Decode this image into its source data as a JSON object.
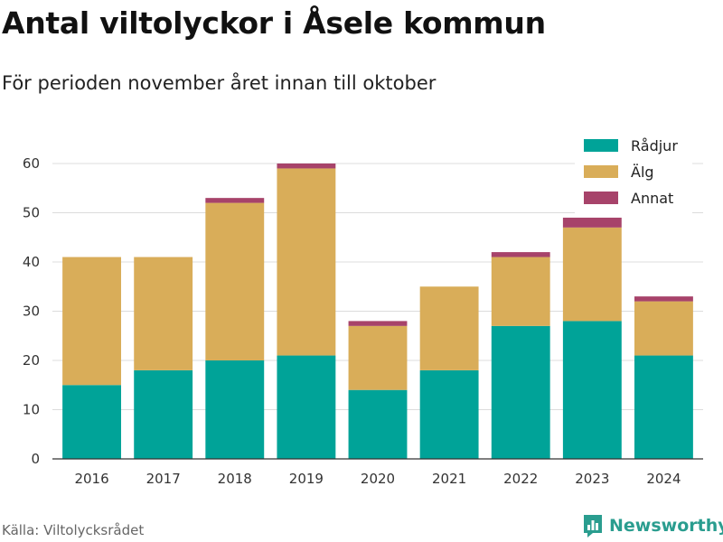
{
  "title": "Antal viltolyckor i Åsele kommun",
  "subtitle": "För perioden november året innan till oktober",
  "source": "Källa: Viltolycksrådet",
  "brand": {
    "name": "Newsworthy",
    "icon": "bar-chart-logo-icon",
    "color": "#2a9d8f"
  },
  "chart_data": {
    "type": "bar",
    "stacked": true,
    "categories": [
      "2016",
      "2017",
      "2018",
      "2019",
      "2020",
      "2021",
      "2022",
      "2023",
      "2024"
    ],
    "series": [
      {
        "name": "Rådjur",
        "color": "#00a398",
        "values": [
          15,
          18,
          20,
          21,
          14,
          18,
          27,
          28,
          21
        ]
      },
      {
        "name": "Älg",
        "color": "#d9ad59",
        "values": [
          26,
          23,
          32,
          38,
          13,
          17,
          14,
          19,
          11
        ]
      },
      {
        "name": "Annat",
        "color": "#a7436a",
        "values": [
          0,
          0,
          1,
          1,
          1,
          0,
          1,
          2,
          1
        ]
      }
    ],
    "ylim": [
      0,
      60
    ],
    "yticks": [
      "0",
      "10",
      "20",
      "30",
      "40",
      "50",
      "60"
    ],
    "grid": true,
    "legend": "top-right"
  }
}
